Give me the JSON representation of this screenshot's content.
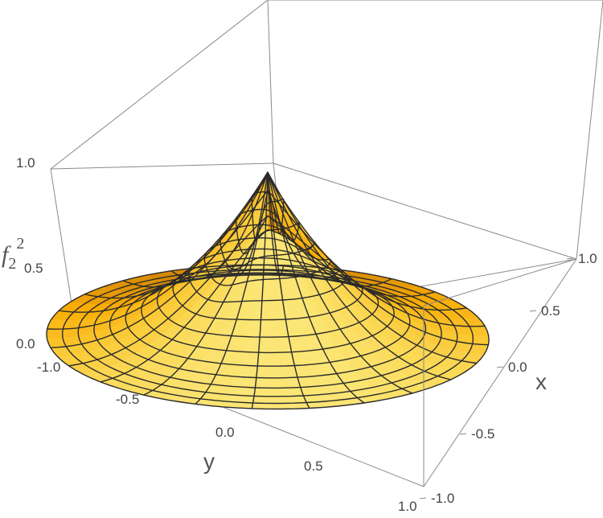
{
  "chart_data": {
    "type": "surface3d",
    "title": "",
    "function_label": {
      "f": "f",
      "sub": "2",
      "sup": "2"
    },
    "xlabel": "x",
    "ylabel": "y",
    "zlabel": "f22",
    "x_ticks": [
      "-1.0",
      "-0.5",
      "0.0",
      "0.5",
      "1.0"
    ],
    "y_ticks": [
      "-1.0",
      "-0.5",
      "0.0",
      "0.5",
      "1.0"
    ],
    "z_ticks": [
      "0.0",
      "0.5",
      "1.0"
    ],
    "xlim": [
      -1,
      1
    ],
    "ylim": [
      -1,
      1
    ],
    "zlim": [
      0,
      1
    ],
    "domain": "unit disk, polar mesh",
    "peak": {
      "x": 0,
      "y": 0,
      "z": 1.0
    },
    "colors": {
      "surface_light": "#ffe02a",
      "surface_mid": "#f5ad2a",
      "surface_dark": "#c46a1a",
      "mesh": "#2b2b2b",
      "box": "#888888"
    }
  }
}
